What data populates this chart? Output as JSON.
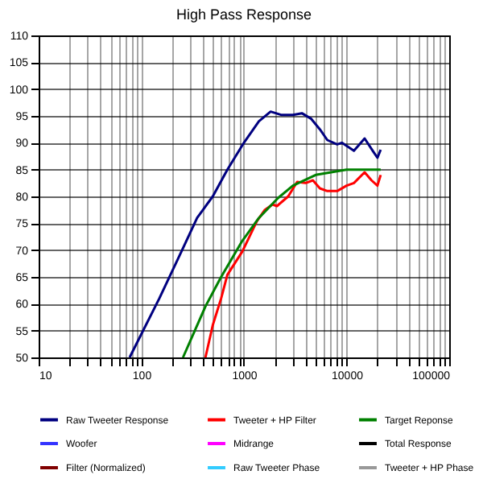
{
  "chart_data": {
    "type": "line",
    "title": "High Pass Response",
    "log": "x",
    "grid": true,
    "legend": "bottom",
    "line_style": "solid",
    "marker": "none",
    "xlim": [
      10,
      100000
    ],
    "ylim": [
      50,
      110
    ],
    "xticks": [
      10,
      {
        "value": 20,
        "label": null
      },
      {
        "value": 30,
        "label": null
      },
      {
        "value": 40,
        "label": null
      },
      {
        "value": 50,
        "label": null
      },
      {
        "value": 60,
        "label": null
      },
      {
        "value": 70,
        "label": null
      },
      {
        "value": 80,
        "label": null
      },
      {
        "value": 90,
        "label": null
      },
      100,
      {
        "value": 200,
        "label": null
      },
      {
        "value": 300,
        "label": null
      },
      {
        "value": 400,
        "label": null
      },
      {
        "value": 500,
        "label": null
      },
      {
        "value": 600,
        "label": null
      },
      {
        "value": 700,
        "label": null
      },
      {
        "value": 800,
        "label": null
      },
      {
        "value": 900,
        "label": null
      },
      1000,
      {
        "value": 2000,
        "label": null
      },
      {
        "value": 3000,
        "label": null
      },
      {
        "value": 4000,
        "label": null
      },
      {
        "value": 5000,
        "label": null
      },
      {
        "value": 6000,
        "label": null
      },
      {
        "value": 7000,
        "label": null
      },
      {
        "value": 8000,
        "label": null
      },
      {
        "value": 9000,
        "label": null
      },
      10000,
      {
        "value": 20000,
        "label": null
      },
      {
        "value": 30000,
        "label": null
      },
      {
        "value": 40000,
        "label": null
      },
      {
        "value": 50000,
        "label": null
      },
      {
        "value": 60000,
        "label": null
      },
      {
        "value": 70000,
        "label": null
      },
      {
        "value": 80000,
        "label": null
      },
      {
        "value": 90000,
        "label": null
      },
      100000
    ],
    "yticks": [
      50,
      55,
      60,
      65,
      70,
      75,
      80,
      85,
      90,
      95,
      100,
      105,
      110
    ],
    "series": [
      {
        "name": "Raw Tweeter Response",
        "color": "#000080",
        "x": [
          77,
          150,
          250,
          350,
          497,
          690,
          1000,
          1400,
          1820,
          2300,
          3000,
          3670,
          4500,
          5500,
          6500,
          8100,
          9000,
          11800,
          15000,
          18000,
          20000,
          21500
        ],
        "values": [
          50,
          61,
          70,
          76,
          80,
          85,
          90,
          94,
          95.8,
          95.2,
          95.2,
          95.5,
          94.5,
          92.5,
          90.5,
          89.7,
          90,
          88.5,
          90.8,
          88.5,
          87.2,
          88.7
        ]
      },
      {
        "name": "Tweeter + HP Filter",
        "color": "#ff0000",
        "x": [
          422,
          497,
          600,
          690,
          963,
          1340,
          1600,
          1900,
          2100,
          2700,
          3300,
          4000,
          4700,
          5500,
          6500,
          8100,
          10000,
          11800,
          15000,
          17500,
          20000,
          21500
        ],
        "values": [
          50,
          56,
          61,
          65.4,
          69.7,
          75.4,
          77.5,
          78.5,
          78.2,
          80,
          82.7,
          82.5,
          83,
          81.5,
          81,
          81,
          82,
          82.5,
          84.5,
          83,
          82,
          84
        ]
      },
      {
        "name": "Target Reponse",
        "color": "#008000",
        "x": [
          255,
          422,
          600,
          963,
          1400,
          2150,
          3000,
          5000,
          10000,
          21500
        ],
        "values": [
          50,
          59.5,
          65,
          71.7,
          76,
          79.7,
          82,
          84,
          85,
          85
        ]
      },
      {
        "name": "Woofer",
        "color": "#3333ff"
      },
      {
        "name": "Midrange",
        "color": "#ff00ff"
      },
      {
        "name": "Total Response",
        "color": "#000000"
      },
      {
        "name": "Filter (Normalized)",
        "color": "#800000"
      },
      {
        "name": "Raw Tweeter Phase",
        "color": "#33ccff"
      },
      {
        "name": "Tweeter + HP Phase",
        "color": "#999999"
      }
    ]
  }
}
